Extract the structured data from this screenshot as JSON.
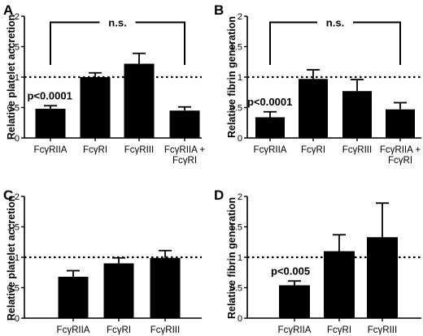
{
  "chart_data": [
    {
      "panel": "A",
      "type": "bar",
      "ylabel": "Relative platelet accretion",
      "categories": [
        [
          "FcγRIIA"
        ],
        [
          "FcγRI"
        ],
        [
          "FcγRIII"
        ],
        [
          "FcγRIIA +",
          "FcγRI"
        ]
      ],
      "values": [
        0.48,
        1.0,
        1.22,
        0.45
      ],
      "errors": [
        0.05,
        0.07,
        0.17,
        0.06
      ],
      "ylim": [
        0,
        2
      ],
      "yticks": [
        "0",
        "0.5",
        "1",
        "1.5",
        "2"
      ],
      "reference_line": 1,
      "annotations": [
        {
          "text": "p<0.0001",
          "bar": 0
        },
        {
          "text": "n.s.",
          "bracket": [
            0,
            3
          ]
        }
      ]
    },
    {
      "panel": "B",
      "type": "bar",
      "ylabel": "Relative fibrin generation",
      "categories": [
        [
          "FcγRIIA"
        ],
        [
          "FcγRI"
        ],
        [
          "FcγRIII"
        ],
        [
          "FcγRIIA +",
          "FcγRI"
        ]
      ],
      "values": [
        0.34,
        0.97,
        0.77,
        0.47
      ],
      "errors": [
        0.09,
        0.15,
        0.19,
        0.11
      ],
      "ylim": [
        0,
        2
      ],
      "yticks": [
        "0",
        "0.5",
        "1",
        "1.5",
        "2"
      ],
      "reference_line": 1,
      "annotations": [
        {
          "text": "p<0.0001",
          "bar": 0
        },
        {
          "text": "n.s.",
          "bracket": [
            0,
            3
          ]
        }
      ]
    },
    {
      "panel": "C",
      "type": "bar",
      "ylabel": "Relative platelet accretion",
      "categories": [
        [
          "FcγRIIA"
        ],
        [
          "FcγRI"
        ],
        [
          "FcγRIII"
        ]
      ],
      "values": [
        0.68,
        0.9,
        0.99
      ],
      "errors": [
        0.1,
        0.09,
        0.12
      ],
      "ylim": [
        0,
        2
      ],
      "yticks": [
        "0",
        "0.5",
        "1",
        "1.5",
        "2"
      ],
      "reference_line": 1,
      "annotations": []
    },
    {
      "panel": "D",
      "type": "bar",
      "ylabel": "Relative fibrin generation",
      "categories": [
        [
          "FcγRIIA"
        ],
        [
          "FcγRI"
        ],
        [
          "FcγRIII"
        ]
      ],
      "values": [
        0.54,
        1.1,
        1.33
      ],
      "errors": [
        0.07,
        0.27,
        0.56
      ],
      "ylim": [
        0,
        2
      ],
      "yticks": [
        "0",
        "0.5",
        "1",
        "1.5",
        "2"
      ],
      "reference_line": 1,
      "annotations": [
        {
          "text": "p<0.005",
          "bar": 0
        }
      ]
    }
  ]
}
